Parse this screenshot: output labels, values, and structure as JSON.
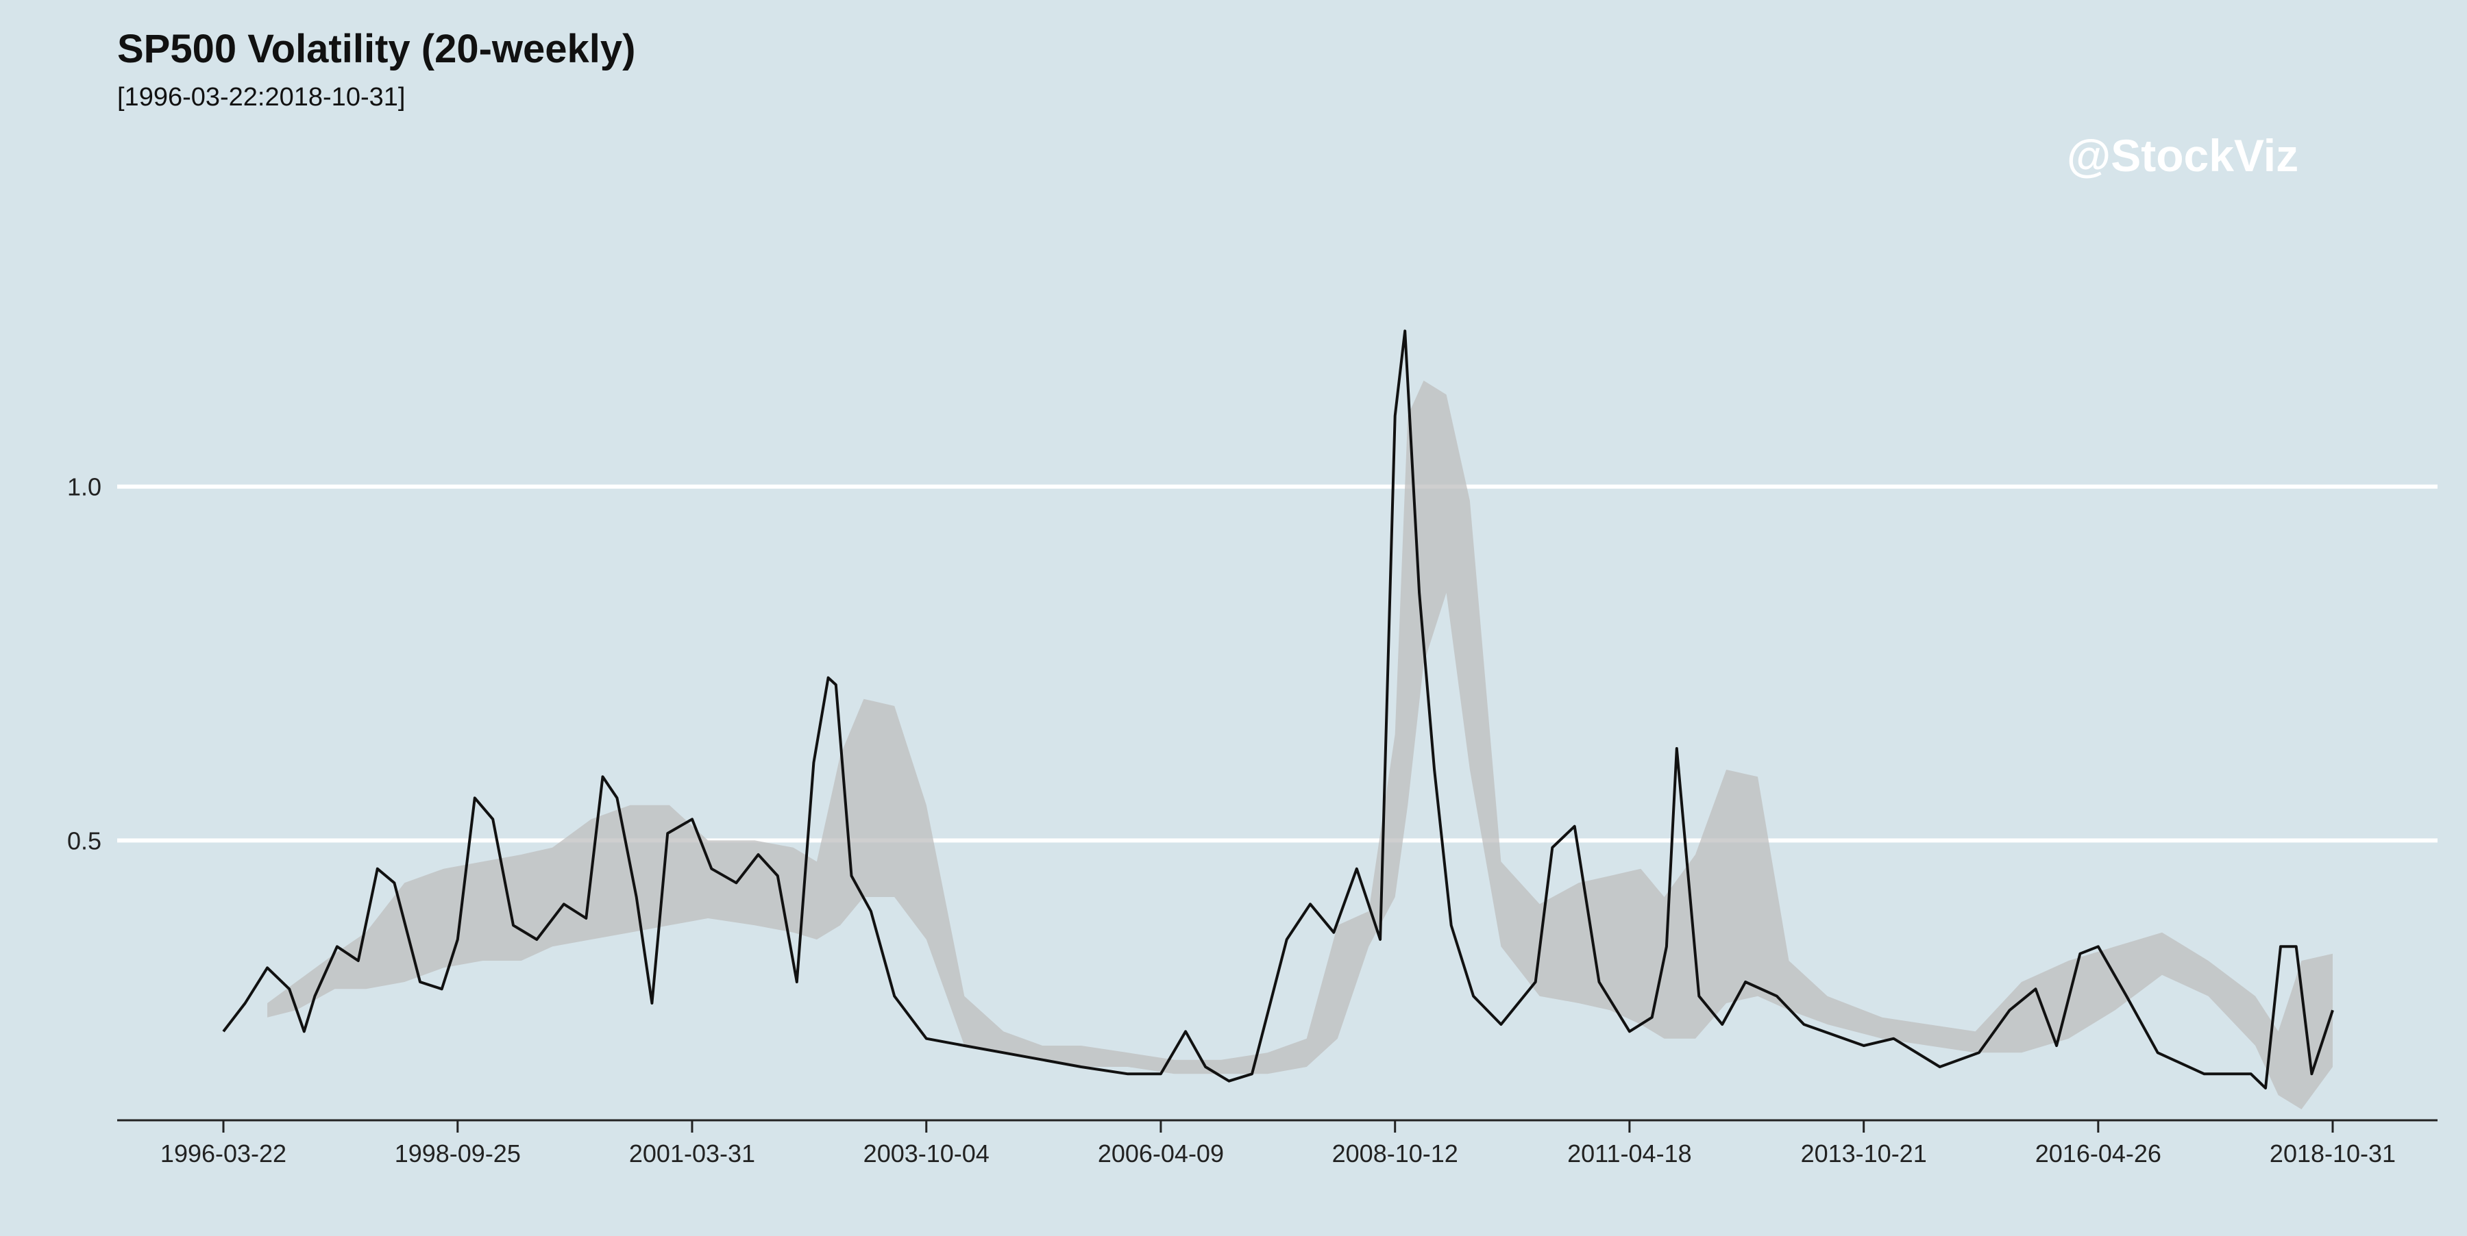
{
  "title": "SP500 Volatility (20-weekly)",
  "subtitle": "[1996-03-22:2018-10-31]",
  "watermark": "@StockViz",
  "colors": {
    "background": "#d6e4ea",
    "line": "#111111",
    "band": "#bdbdbd",
    "grid": "#ffffff",
    "watermark": "#ffffff"
  },
  "chart_data": {
    "type": "line",
    "title": "SP500 Volatility (20-weekly)",
    "subtitle": "[1996-03-22:2018-10-31]",
    "xlabel": "",
    "ylabel": "",
    "x_range": [
      "1996-03-22",
      "2018-10-31"
    ],
    "ylim": [
      0.12,
      1.32
    ],
    "grid": "horizontal",
    "x_tick_labels": [
      "1996-03-22",
      "1998-09-25",
      "2001-03-31",
      "2003-10-04",
      "2006-04-09",
      "2008-10-12",
      "2011-04-18",
      "2013-10-21",
      "2016-04-26",
      "2018-10-31"
    ],
    "y_ticks": [
      0.5,
      1.0
    ],
    "y_tick_labels": [
      "0.5",
      "1.0"
    ],
    "series": [
      {
        "kind": "line",
        "x": [
          "1996-03-22",
          "1996-06-15",
          "1996-09-10",
          "1996-12-05",
          "1997-02-01",
          "1997-03-15",
          "1997-06-10",
          "1997-09-01",
          "1997-11-15",
          "1998-01-20",
          "1998-05-01",
          "1998-07-25",
          "1998-09-25",
          "1998-12-01",
          "1999-02-10",
          "1999-05-01",
          "1999-08-01",
          "1999-11-15",
          "2000-02-10",
          "2000-04-15",
          "2000-06-10",
          "2000-08-25",
          "2000-10-25",
          "2000-12-25",
          "2001-03-31",
          "2001-06-15",
          "2001-09-20",
          "2001-12-15",
          "2002-03-01",
          "2002-05-15",
          "2002-07-20",
          "2002-09-15",
          "2002-10-15",
          "2002-12-15",
          "2003-03-01",
          "2003-06-01",
          "2003-10-04",
          "2004-03-01",
          "2004-08-01",
          "2005-01-01",
          "2005-06-01",
          "2005-12-01",
          "2006-04-09",
          "2006-07-15",
          "2006-10-01",
          "2007-01-01",
          "2007-04-01",
          "2007-08-15",
          "2007-11-15",
          "2008-02-15",
          "2008-05-15",
          "2008-08-15",
          "2008-10-12",
          "2008-11-20",
          "2009-01-15",
          "2009-03-15",
          "2009-05-20",
          "2009-08-15",
          "2009-12-01",
          "2010-04-15",
          "2010-06-20",
          "2010-09-15",
          "2010-12-20",
          "2011-04-18",
          "2011-07-15",
          "2011-09-10",
          "2011-10-20",
          "2012-01-15",
          "2012-04-15",
          "2012-07-15",
          "2012-11-15",
          "2013-03-01",
          "2013-10-21",
          "2014-02-15",
          "2014-08-15",
          "2015-01-15",
          "2015-05-15",
          "2015-08-25",
          "2015-11-15",
          "2016-02-15",
          "2016-04-26",
          "2016-08-15",
          "2016-12-15",
          "2017-06-15",
          "2017-12-15",
          "2018-02-10",
          "2018-04-10",
          "2018-06-10",
          "2018-08-10",
          "2018-10-31"
        ],
        "values": [
          0.23,
          0.27,
          0.32,
          0.29,
          0.23,
          0.28,
          0.35,
          0.33,
          0.46,
          0.44,
          0.3,
          0.29,
          0.36,
          0.56,
          0.53,
          0.38,
          0.36,
          0.41,
          0.39,
          0.59,
          0.56,
          0.42,
          0.27,
          0.51,
          0.53,
          0.46,
          0.44,
          0.48,
          0.45,
          0.3,
          0.61,
          0.73,
          0.72,
          0.45,
          0.4,
          0.28,
          0.22,
          0.21,
          0.2,
          0.19,
          0.18,
          0.17,
          0.17,
          0.23,
          0.18,
          0.16,
          0.17,
          0.36,
          0.41,
          0.37,
          0.46,
          0.36,
          1.1,
          1.22,
          0.85,
          0.6,
          0.38,
          0.28,
          0.24,
          0.3,
          0.49,
          0.52,
          0.3,
          0.23,
          0.25,
          0.35,
          0.63,
          0.28,
          0.24,
          0.3,
          0.28,
          0.24,
          0.21,
          0.22,
          0.18,
          0.2,
          0.26,
          0.29,
          0.21,
          0.34,
          0.35,
          0.28,
          0.2,
          0.17,
          0.17,
          0.15,
          0.35,
          0.35,
          0.17,
          0.26
        ]
      },
      {
        "kind": "band",
        "x": [
          "1996-09-10",
          "1997-01-01",
          "1997-06-01",
          "1997-10-01",
          "1998-03-01",
          "1998-08-01",
          "1999-01-01",
          "1999-06-01",
          "1999-10-01",
          "2000-03-01",
          "2000-08-01",
          "2001-01-01",
          "2001-06-01",
          "2001-12-01",
          "2002-05-01",
          "2002-08-01",
          "2002-11-01",
          "2003-02-01",
          "2003-06-01",
          "2003-10-04",
          "2004-03-01",
          "2004-08-01",
          "2005-01-01",
          "2005-06-01",
          "2005-12-01",
          "2006-06-01",
          "2006-12-01",
          "2007-06-01",
          "2007-11-01",
          "2008-03-01",
          "2008-07-01",
          "2008-10-12",
          "2008-12-01",
          "2009-02-01",
          "2009-05-01",
          "2009-08-01",
          "2009-12-01",
          "2010-05-01",
          "2010-10-01",
          "2011-02-01",
          "2011-06-01",
          "2011-09-01",
          "2012-01-01",
          "2012-05-01",
          "2012-09-01",
          "2013-01-01",
          "2013-06-01",
          "2014-01-01",
          "2014-07-01",
          "2015-01-01",
          "2015-07-01",
          "2016-01-01",
          "2016-07-01",
          "2017-01-01",
          "2017-07-01",
          "2018-01-01",
          "2018-04-01",
          "2018-07-01",
          "2018-10-31"
        ],
        "lower": [
          0.25,
          0.26,
          0.29,
          0.29,
          0.3,
          0.32,
          0.33,
          0.33,
          0.35,
          0.36,
          0.37,
          0.38,
          0.39,
          0.38,
          0.37,
          0.36,
          0.38,
          0.42,
          0.42,
          0.36,
          0.21,
          0.2,
          0.19,
          0.18,
          0.18,
          0.17,
          0.17,
          0.17,
          0.18,
          0.22,
          0.35,
          0.42,
          0.55,
          0.75,
          0.85,
          0.6,
          0.35,
          0.28,
          0.27,
          0.26,
          0.24,
          0.22,
          0.22,
          0.27,
          0.28,
          0.26,
          0.24,
          0.22,
          0.21,
          0.2,
          0.2,
          0.22,
          0.26,
          0.31,
          0.28,
          0.21,
          0.14,
          0.12,
          0.18
        ],
        "upper": [
          0.27,
          0.3,
          0.34,
          0.37,
          0.44,
          0.46,
          0.47,
          0.48,
          0.49,
          0.53,
          0.55,
          0.55,
          0.5,
          0.5,
          0.49,
          0.47,
          0.62,
          0.7,
          0.69,
          0.55,
          0.28,
          0.23,
          0.21,
          0.21,
          0.2,
          0.19,
          0.19,
          0.2,
          0.22,
          0.38,
          0.4,
          0.65,
          1.1,
          1.15,
          1.13,
          0.98,
          0.47,
          0.41,
          0.44,
          0.45,
          0.46,
          0.42,
          0.48,
          0.6,
          0.59,
          0.33,
          0.28,
          0.25,
          0.24,
          0.23,
          0.3,
          0.33,
          0.35,
          0.37,
          0.33,
          0.28,
          0.23,
          0.33,
          0.34
        ]
      }
    ]
  }
}
